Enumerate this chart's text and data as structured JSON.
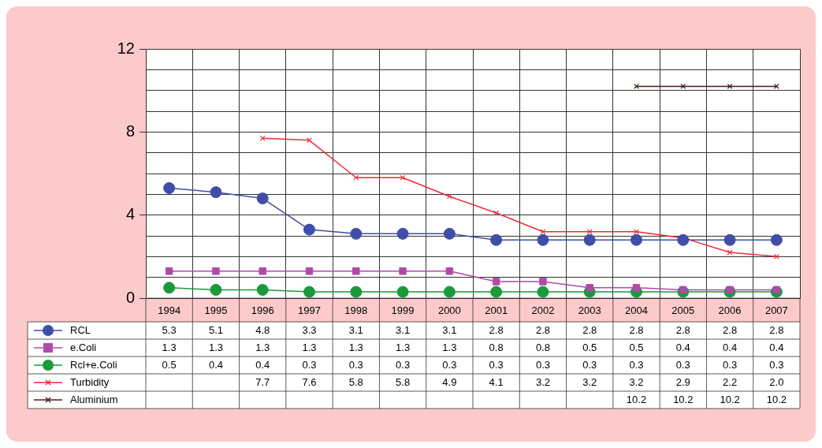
{
  "chart_data": {
    "type": "line",
    "categories": [
      "1994",
      "1995",
      "1996",
      "1997",
      "1998",
      "1999",
      "2000",
      "2001",
      "2002",
      "2003",
      "2004",
      "2005",
      "2006",
      "2007"
    ],
    "ylim": [
      0,
      12
    ],
    "yticks": [
      0,
      {
        "value": 1,
        "label": null
      },
      {
        "value": 2,
        "label": null
      },
      {
        "value": 3,
        "label": null
      },
      4,
      {
        "value": 5,
        "label": null
      },
      {
        "value": 6,
        "label": null
      },
      {
        "value": 7,
        "label": null
      },
      8,
      {
        "value": 9,
        "label": null
      },
      {
        "value": 10,
        "label": null
      },
      {
        "value": 11,
        "label": null
      },
      12
    ],
    "grid": true,
    "legend": "bottom left",
    "series": [
      {
        "name": "RCL",
        "color": "#3f4fa8",
        "marker": "circle",
        "values": [
          5.3,
          5.1,
          4.8,
          3.3,
          3.1,
          3.1,
          3.1,
          2.8,
          2.8,
          2.8,
          2.8,
          2.8,
          2.8,
          2.8
        ],
        "value_labels": [
          "5.3",
          "5.1",
          "4.8",
          "3.3",
          "3.1",
          "3.1",
          "3.1",
          "2.8",
          "2.8",
          "2.8",
          "2.8",
          "2.8",
          "2.8",
          "2.8"
        ]
      },
      {
        "name": "e.Coli",
        "color": "#b04aa8",
        "marker": "square",
        "values": [
          1.3,
          1.3,
          1.3,
          1.3,
          1.3,
          1.3,
          1.3,
          0.8,
          0.8,
          0.5,
          0.5,
          0.4,
          0.4,
          0.4
        ],
        "value_labels": [
          "1.3",
          "1.3",
          "1.3",
          "1.3",
          "1.3",
          "1.3",
          "1.3",
          "0.8",
          "0.8",
          "0.5",
          "0.5",
          "0.4",
          "0.4",
          "0.4"
        ]
      },
      {
        "name": "Rcl+e.Coli",
        "color": "#1a9a3a",
        "marker": "circle",
        "values": [
          0.5,
          0.4,
          0.4,
          0.3,
          0.3,
          0.3,
          0.3,
          0.3,
          0.3,
          0.3,
          0.3,
          0.3,
          0.3,
          0.3
        ],
        "value_labels": [
          "0.5",
          "0.4",
          "0.4",
          "0.3",
          "0.3",
          "0.3",
          "0.3",
          "0.3",
          "0.3",
          "0.3",
          "0.3",
          "0.3",
          "0.3",
          "0.3"
        ]
      },
      {
        "name": "Turbidity",
        "color": "#ee2a3a",
        "marker": "cross",
        "values": [
          null,
          null,
          7.7,
          7.6,
          5.8,
          5.8,
          4.9,
          4.1,
          3.2,
          3.2,
          3.2,
          2.9,
          2.2,
          2.0
        ],
        "value_labels": [
          null,
          null,
          "7.7",
          "7.6",
          "5.8",
          "5.8",
          "4.9",
          "4.1",
          "3.2",
          "3.2",
          "3.2",
          "2.9",
          "2.2",
          "2.0"
        ]
      },
      {
        "name": "Aluminium",
        "color": "#4a1a14",
        "marker": "cross",
        "values": [
          null,
          null,
          null,
          null,
          null,
          null,
          null,
          null,
          null,
          null,
          10.2,
          10.2,
          10.2,
          10.2
        ],
        "value_labels": [
          null,
          null,
          null,
          null,
          null,
          null,
          null,
          null,
          null,
          null,
          "10.2",
          "10.2",
          "10.2",
          "10.2"
        ]
      }
    ]
  }
}
